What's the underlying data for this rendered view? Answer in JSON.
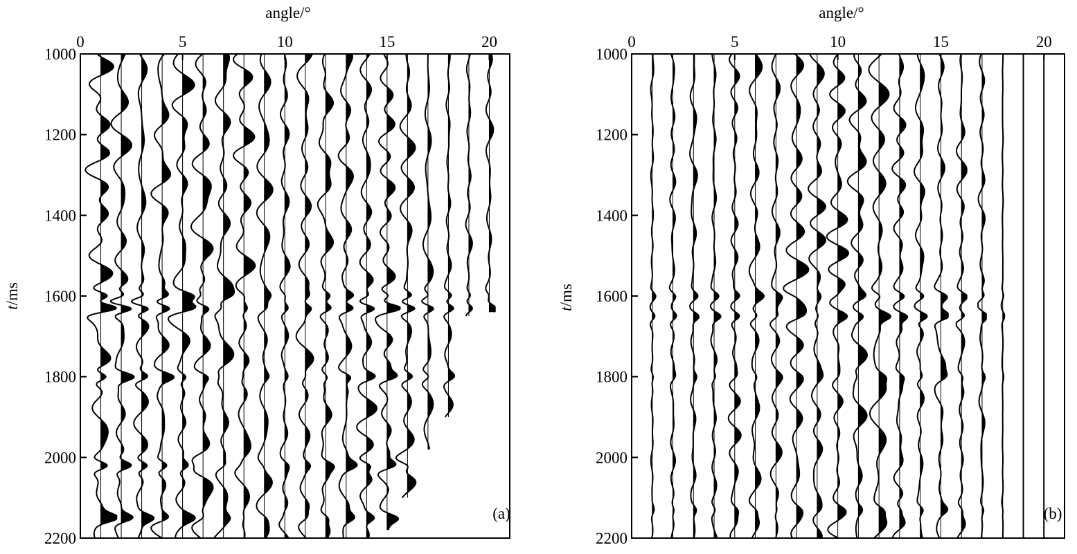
{
  "chart_data": [
    {
      "type": "seismic-wiggle",
      "panel_label": "(a)",
      "xlabel": "angle/°",
      "ylabel_italic": "t",
      "ylabel_rest": "/ms",
      "xlim": [
        0,
        21
      ],
      "ylim": [
        1000,
        2200
      ],
      "xticks": [
        0,
        5,
        10,
        15,
        20
      ],
      "yticks": [
        1000,
        1200,
        1400,
        1600,
        1800,
        2000,
        2200
      ],
      "traces": [
        {
          "angle": 1,
          "t_end": 2200,
          "amp": 0.55
        },
        {
          "angle": 2,
          "t_end": 2200,
          "amp": 0.55
        },
        {
          "angle": 3,
          "t_end": 2200,
          "amp": 0.5
        },
        {
          "angle": 4,
          "t_end": 2200,
          "amp": 0.5
        },
        {
          "angle": 5,
          "t_end": 2200,
          "amp": 0.5
        },
        {
          "angle": 6,
          "t_end": 2200,
          "amp": 0.5
        },
        {
          "angle": 7,
          "t_end": 2200,
          "amp": 0.45
        },
        {
          "angle": 8,
          "t_end": 2200,
          "amp": 0.45
        },
        {
          "angle": 9,
          "t_end": 2200,
          "amp": 0.45
        },
        {
          "angle": 10,
          "t_end": 2200,
          "amp": 0.45
        },
        {
          "angle": 11,
          "t_end": 2200,
          "amp": 0.45
        },
        {
          "angle": 12,
          "t_end": 2200,
          "amp": 0.45
        },
        {
          "angle": 13,
          "t_end": 2200,
          "amp": 0.45
        },
        {
          "angle": 14,
          "t_end": 2200,
          "amp": 0.45
        },
        {
          "angle": 15,
          "t_end": 2180,
          "amp": 0.45
        },
        {
          "angle": 16,
          "t_end": 2100,
          "amp": 0.4
        },
        {
          "angle": 17,
          "t_end": 1980,
          "amp": 0.3
        },
        {
          "angle": 18,
          "t_end": 1900,
          "amp": 0.25
        },
        {
          "angle": 19,
          "t_end": 1650,
          "amp": 0.2
        },
        {
          "angle": 20,
          "t_end": 1640,
          "amp": 0.2
        }
      ],
      "events": [
        {
          "t": 1600,
          "strength": 0.6
        },
        {
          "t": 1630,
          "strength": 1.0
        },
        {
          "t": 1800,
          "strength": 0.6
        },
        {
          "t": 2020,
          "strength": 0.6
        },
        {
          "t": 2150,
          "strength": 0.5
        }
      ]
    },
    {
      "type": "seismic-wiggle",
      "panel_label": "(b)",
      "xlabel": "angle/°",
      "ylabel_italic": "t",
      "ylabel_rest": "/ms",
      "xlim": [
        0,
        21
      ],
      "ylim": [
        1000,
        2200
      ],
      "xticks": [
        0,
        5,
        10,
        15,
        20
      ],
      "yticks": [
        1000,
        1200,
        1400,
        1600,
        1800,
        2000,
        2200
      ],
      "traces": [
        {
          "angle": 1,
          "t_end": 2200,
          "amp": 0.12
        },
        {
          "angle": 2,
          "t_end": 2200,
          "amp": 0.14
        },
        {
          "angle": 3,
          "t_end": 2200,
          "amp": 0.18
        },
        {
          "angle": 4,
          "t_end": 2200,
          "amp": 0.25
        },
        {
          "angle": 5,
          "t_end": 2200,
          "amp": 0.3
        },
        {
          "angle": 6,
          "t_end": 2200,
          "amp": 0.35
        },
        {
          "angle": 7,
          "t_end": 2200,
          "amp": 0.4
        },
        {
          "angle": 8,
          "t_end": 2200,
          "amp": 0.45
        },
        {
          "angle": 9,
          "t_end": 2200,
          "amp": 0.45
        },
        {
          "angle": 10,
          "t_end": 2200,
          "amp": 0.45
        },
        {
          "angle": 11,
          "t_end": 2200,
          "amp": 0.45
        },
        {
          "angle": 12,
          "t_end": 2200,
          "amp": 0.45
        },
        {
          "angle": 13,
          "t_end": 2200,
          "amp": 0.35
        },
        {
          "angle": 14,
          "t_end": 2200,
          "amp": 0.3
        },
        {
          "angle": 15,
          "t_end": 2200,
          "amp": 0.25
        },
        {
          "angle": 16,
          "t_end": 2200,
          "amp": 0.18
        },
        {
          "angle": 17,
          "t_end": 2200,
          "amp": 0.14
        },
        {
          "angle": 18,
          "t_end": 2200,
          "amp": 0.06
        },
        {
          "angle": 19,
          "t_end": 2200,
          "amp": 0.0
        },
        {
          "angle": 20,
          "t_end": 2200,
          "amp": 0.0
        }
      ],
      "events": [
        {
          "t": 1600,
          "strength": 0.8
        },
        {
          "t": 1650,
          "strength": 1.0
        },
        {
          "t": 1800,
          "strength": 0.4
        },
        {
          "t": 2130,
          "strength": 0.4
        }
      ]
    }
  ]
}
